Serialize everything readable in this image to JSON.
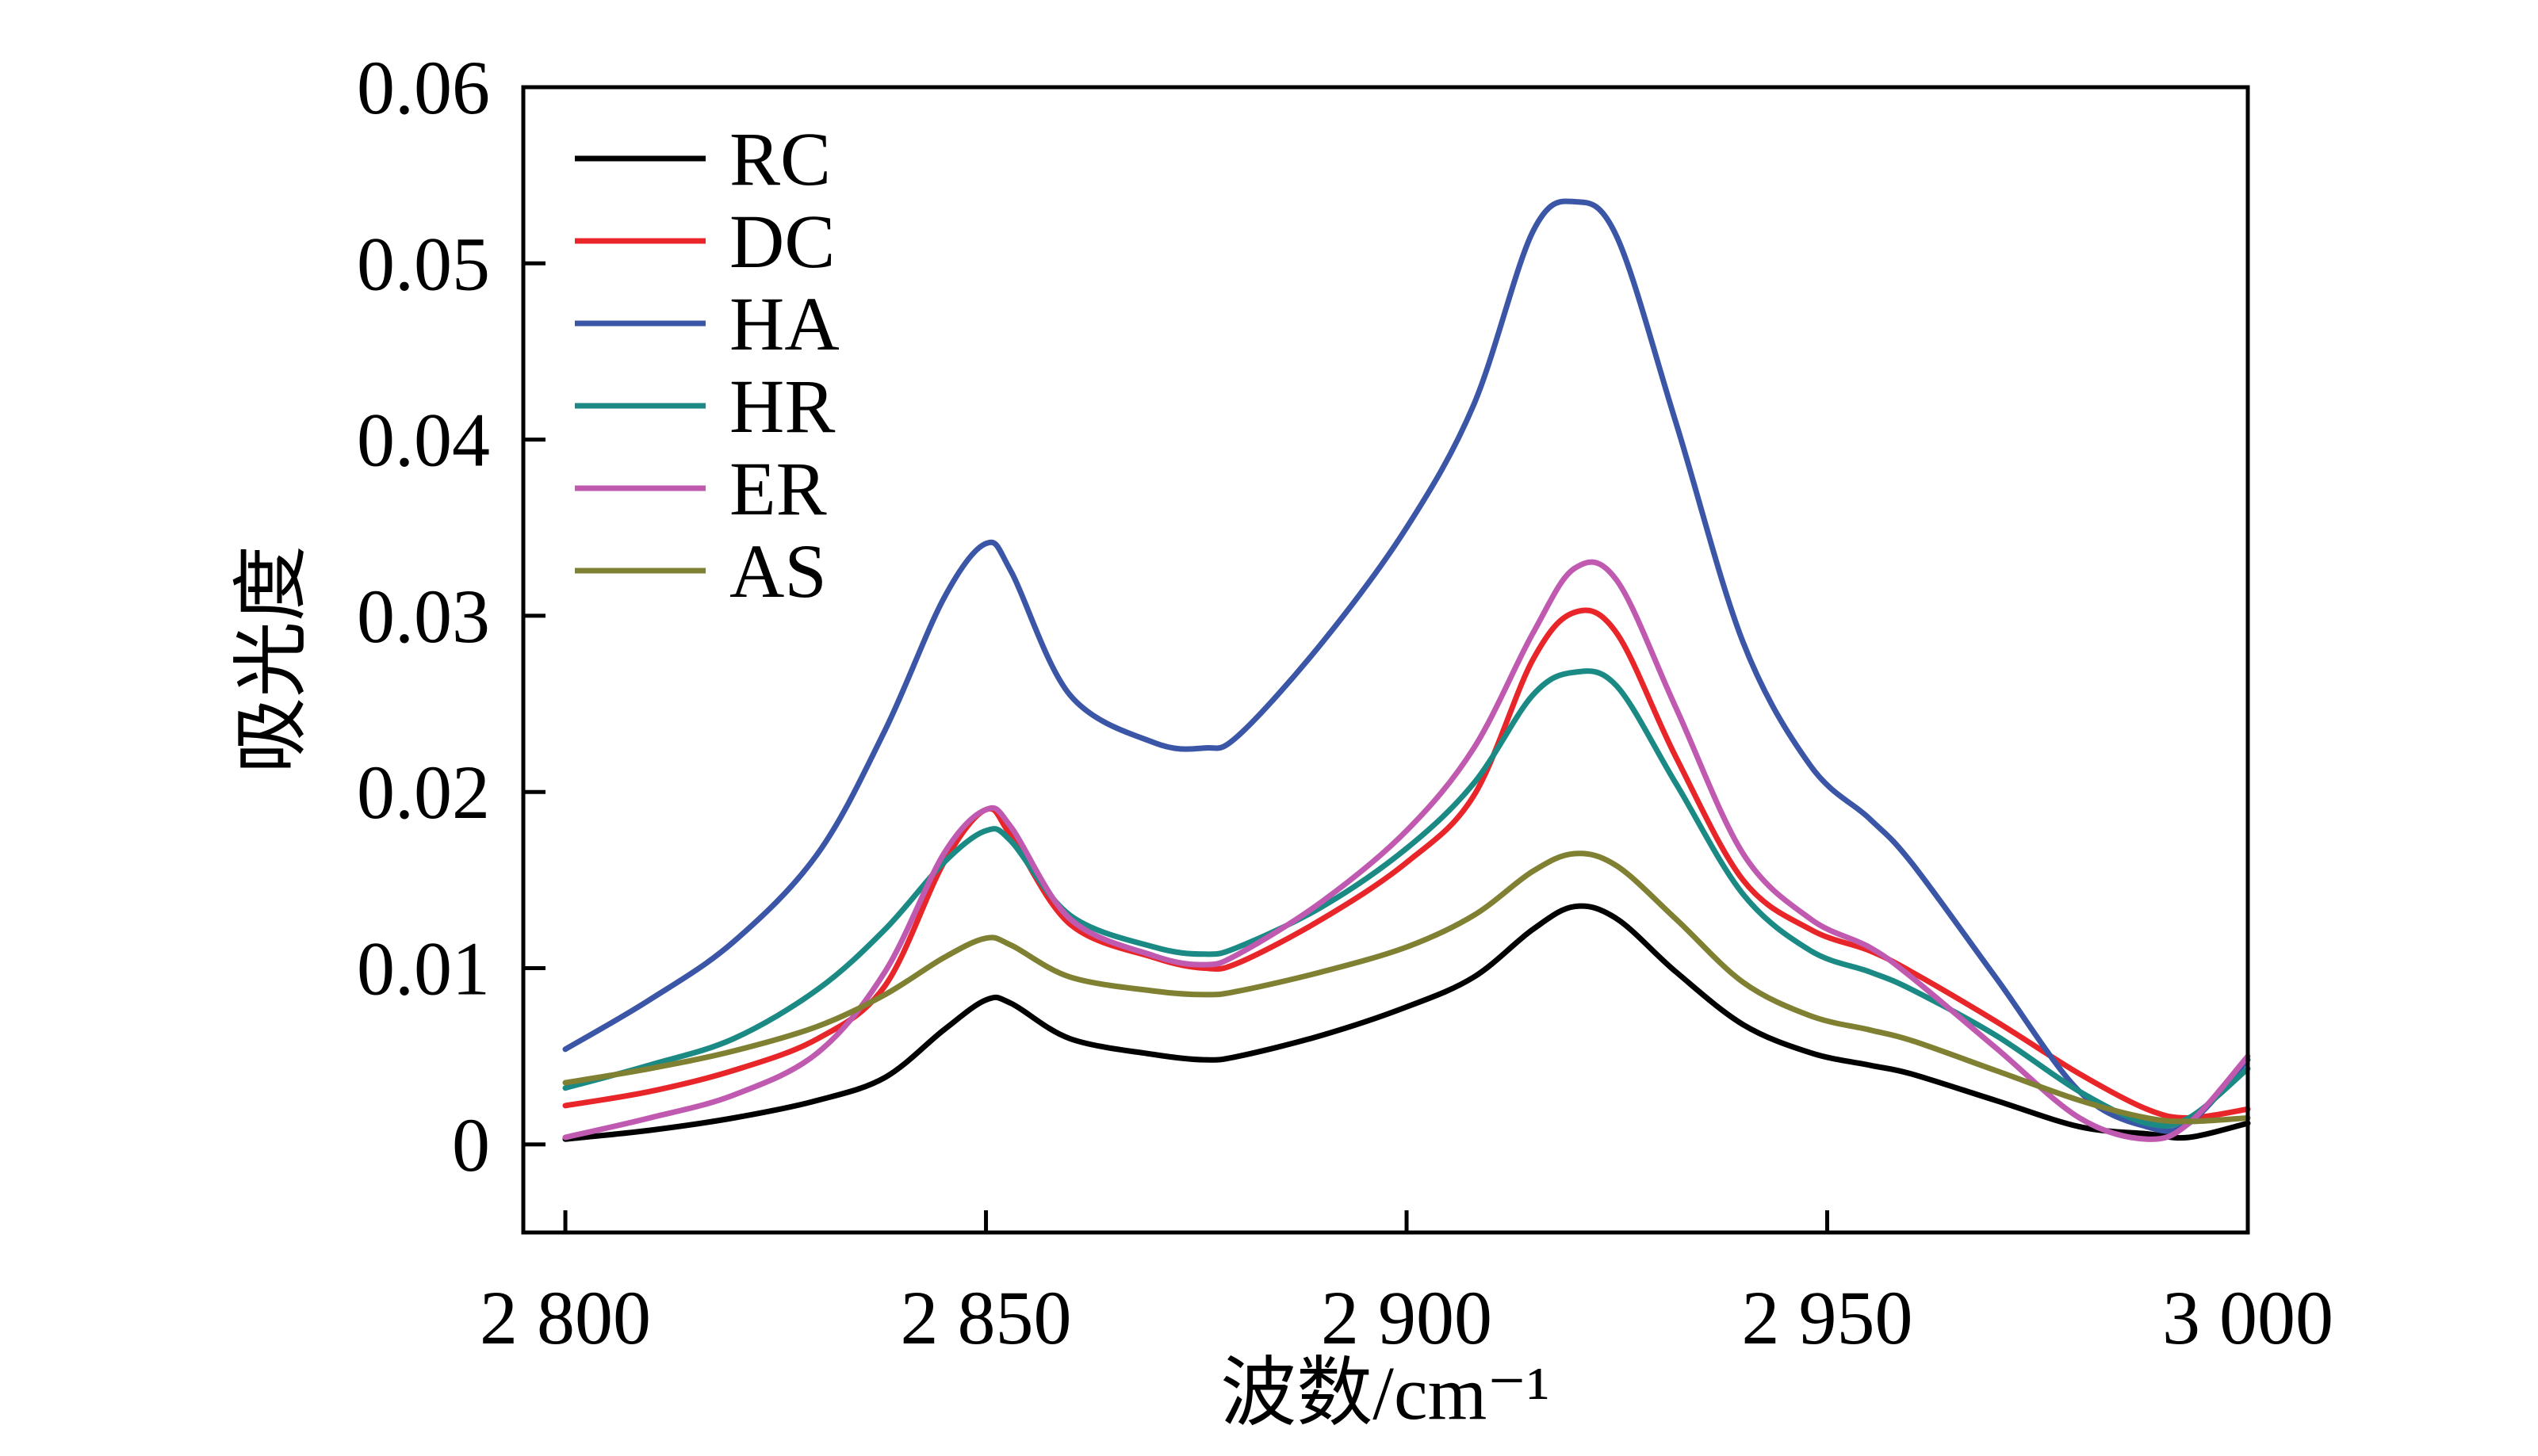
{
  "chart_data": {
    "type": "line",
    "xlabel": "波数/cm⁻¹",
    "ylabel": "吸光度",
    "xlim": [
      2795,
      3000
    ],
    "ylim": [
      -0.005,
      0.06
    ],
    "x_ticks": [
      2800,
      2850,
      2900,
      2950,
      3000
    ],
    "x_tick_labels": [
      "2 800",
      "2 850",
      "2 900",
      "2 950",
      "3 000"
    ],
    "y_ticks": [
      0,
      0.01,
      0.02,
      0.03,
      0.04,
      0.05,
      0.06
    ],
    "y_tick_labels": [
      "0",
      "0.01",
      "0.02",
      "0.03",
      "0.04",
      "0.05",
      "0.06"
    ],
    "grid": false,
    "legend_position": "top-left",
    "x": [
      2800,
      2810,
      2820,
      2830,
      2838,
      2845,
      2850,
      2853,
      2860,
      2870,
      2876,
      2880,
      2890,
      2900,
      2908,
      2915,
      2920,
      2925,
      2932,
      2940,
      2948,
      2955,
      2960,
      2970,
      2980,
      2988,
      2993,
      3000
    ],
    "series": [
      {
        "name": "RC",
        "color": "#000000",
        "values": [
          0.0003,
          0.0008,
          0.0015,
          0.0025,
          0.0038,
          0.0065,
          0.0082,
          0.008,
          0.006,
          0.0051,
          0.0048,
          0.005,
          0.0062,
          0.0078,
          0.0095,
          0.0122,
          0.0135,
          0.0128,
          0.0098,
          0.0068,
          0.0052,
          0.0045,
          0.004,
          0.0025,
          0.001,
          0.0006,
          0.0004,
          0.0012
        ]
      },
      {
        "name": "DC",
        "color": "#e8262a",
        "values": [
          0.0022,
          0.003,
          0.0042,
          0.006,
          0.009,
          0.016,
          0.019,
          0.0175,
          0.0125,
          0.0106,
          0.01,
          0.0103,
          0.0128,
          0.016,
          0.0198,
          0.0275,
          0.0302,
          0.029,
          0.022,
          0.015,
          0.0122,
          0.011,
          0.0098,
          0.007,
          0.004,
          0.002,
          0.0015,
          0.002
        ]
      },
      {
        "name": "HA",
        "color": "#3b56a6",
        "values": [
          0.0054,
          0.0082,
          0.0115,
          0.0165,
          0.0235,
          0.031,
          0.0341,
          0.0325,
          0.0255,
          0.0228,
          0.0225,
          0.0232,
          0.0285,
          0.035,
          0.042,
          0.0518,
          0.0535,
          0.0515,
          0.041,
          0.0285,
          0.0215,
          0.0185,
          0.016,
          0.0095,
          0.003,
          0.001,
          0.0012,
          0.0048
        ]
      },
      {
        "name": "HR",
        "color": "#1b8a84",
        "values": [
          0.0032,
          0.0045,
          0.006,
          0.0088,
          0.0122,
          0.016,
          0.0178,
          0.0172,
          0.013,
          0.0112,
          0.0108,
          0.0112,
          0.0135,
          0.0168,
          0.0205,
          0.0255,
          0.0268,
          0.026,
          0.0205,
          0.0142,
          0.011,
          0.0098,
          0.0088,
          0.0062,
          0.003,
          0.0012,
          0.0015,
          0.0043
        ]
      },
      {
        "name": "ER",
        "color": "#c05ab0",
        "values": [
          0.0004,
          0.0015,
          0.0028,
          0.0052,
          0.0098,
          0.0165,
          0.019,
          0.018,
          0.0128,
          0.0107,
          0.0102,
          0.0108,
          0.0138,
          0.0178,
          0.0225,
          0.029,
          0.0327,
          0.032,
          0.0248,
          0.0165,
          0.0128,
          0.0112,
          0.0095,
          0.0055,
          0.0015,
          0.0003,
          0.0012,
          0.005
        ]
      },
      {
        "name": "AS",
        "color": "#808033",
        "values": [
          0.0035,
          0.0043,
          0.0053,
          0.0067,
          0.0085,
          0.0106,
          0.0117,
          0.0113,
          0.0095,
          0.0087,
          0.0085,
          0.0087,
          0.0098,
          0.0112,
          0.013,
          0.0155,
          0.0165,
          0.0158,
          0.0128,
          0.0092,
          0.0073,
          0.0065,
          0.0059,
          0.0042,
          0.0025,
          0.0015,
          0.0013,
          0.0015
        ]
      }
    ]
  }
}
